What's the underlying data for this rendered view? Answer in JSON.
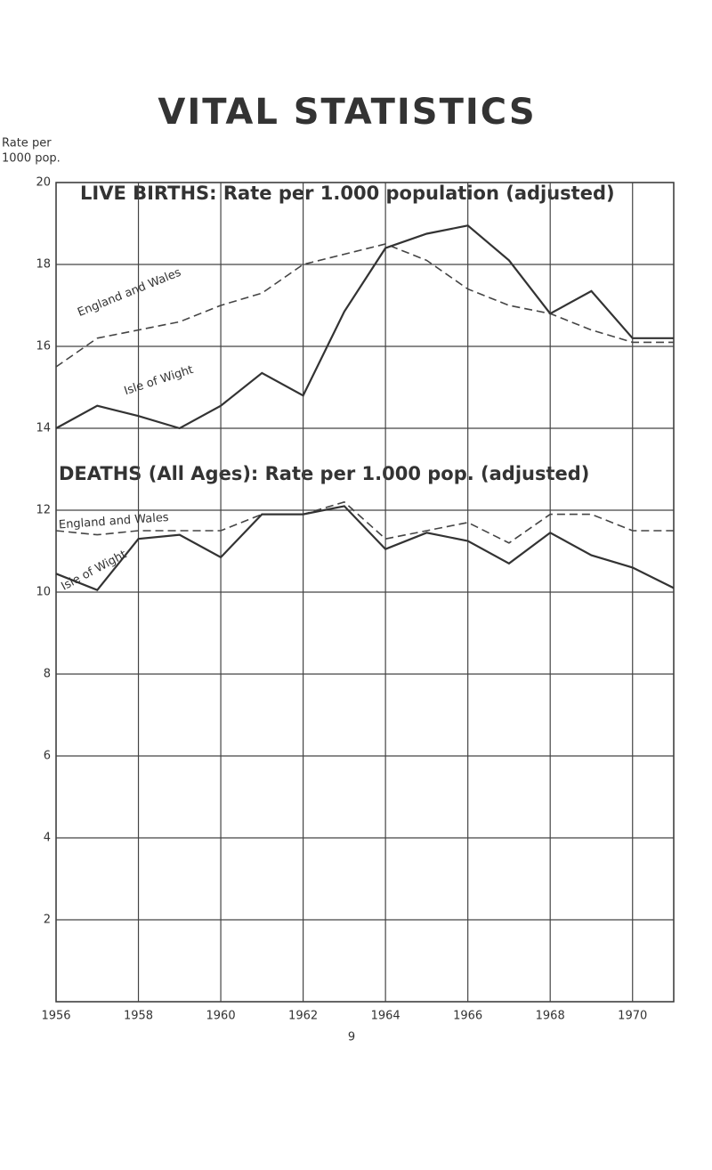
{
  "chart_data": {
    "type": "line",
    "title": "VITAL STATISTICS",
    "y_label": [
      "Rate per",
      "1000 pop."
    ],
    "annotations": [
      "LIVE BIRTHS: Rate per 1.000 population (adjusted)",
      "DEATHS (All Ages): Rate per 1.000 pop. (adjusted)"
    ],
    "x": [
      1956,
      1957,
      1958,
      1959,
      1960,
      1961,
      1962,
      1963,
      1964,
      1965,
      1966,
      1967,
      1968,
      1969,
      1970,
      1971
    ],
    "xlim": [
      1956,
      1971
    ],
    "xticks": [
      1956,
      1958,
      1960,
      1962,
      1964,
      1966,
      1968,
      1970
    ],
    "ylim": [
      0,
      20
    ],
    "yticks": [
      2,
      4,
      6,
      8,
      10,
      12,
      14,
      16,
      18,
      20
    ],
    "grid": true,
    "series": [
      {
        "name": "England and Wales",
        "color": "#444",
        "dashed": true,
        "values": [
          15.5,
          16.2,
          16.4,
          16.6,
          17.0,
          17.3,
          18.0,
          18.25,
          18.5,
          18.1,
          17.4,
          17.0,
          16.8,
          16.4,
          16.1,
          16.1
        ]
      },
      {
        "name": "Isle of Wight",
        "color": "#333",
        "dashed": false,
        "values": [
          14.0,
          14.55,
          14.3,
          14.0,
          14.55,
          15.35,
          14.8,
          16.85,
          18.4,
          18.75,
          18.95,
          18.1,
          16.8,
          17.35,
          16.2,
          16.2
        ]
      },
      {
        "name": "England and Wales",
        "color": "#444",
        "dashed": true,
        "values": [
          11.5,
          11.4,
          11.5,
          11.5,
          11.5,
          11.9,
          11.9,
          12.2,
          11.3,
          11.5,
          11.7,
          11.2,
          11.9,
          11.9,
          11.5,
          11.5
        ]
      },
      {
        "name": "Isle of Wight",
        "color": "#333",
        "dashed": false,
        "values": [
          10.45,
          10.05,
          11.3,
          11.4,
          10.85,
          11.9,
          11.9,
          12.1,
          11.05,
          11.45,
          11.25,
          10.7,
          11.45,
          10.9,
          10.6,
          10.1
        ]
      }
    ]
  },
  "page_number": "9"
}
